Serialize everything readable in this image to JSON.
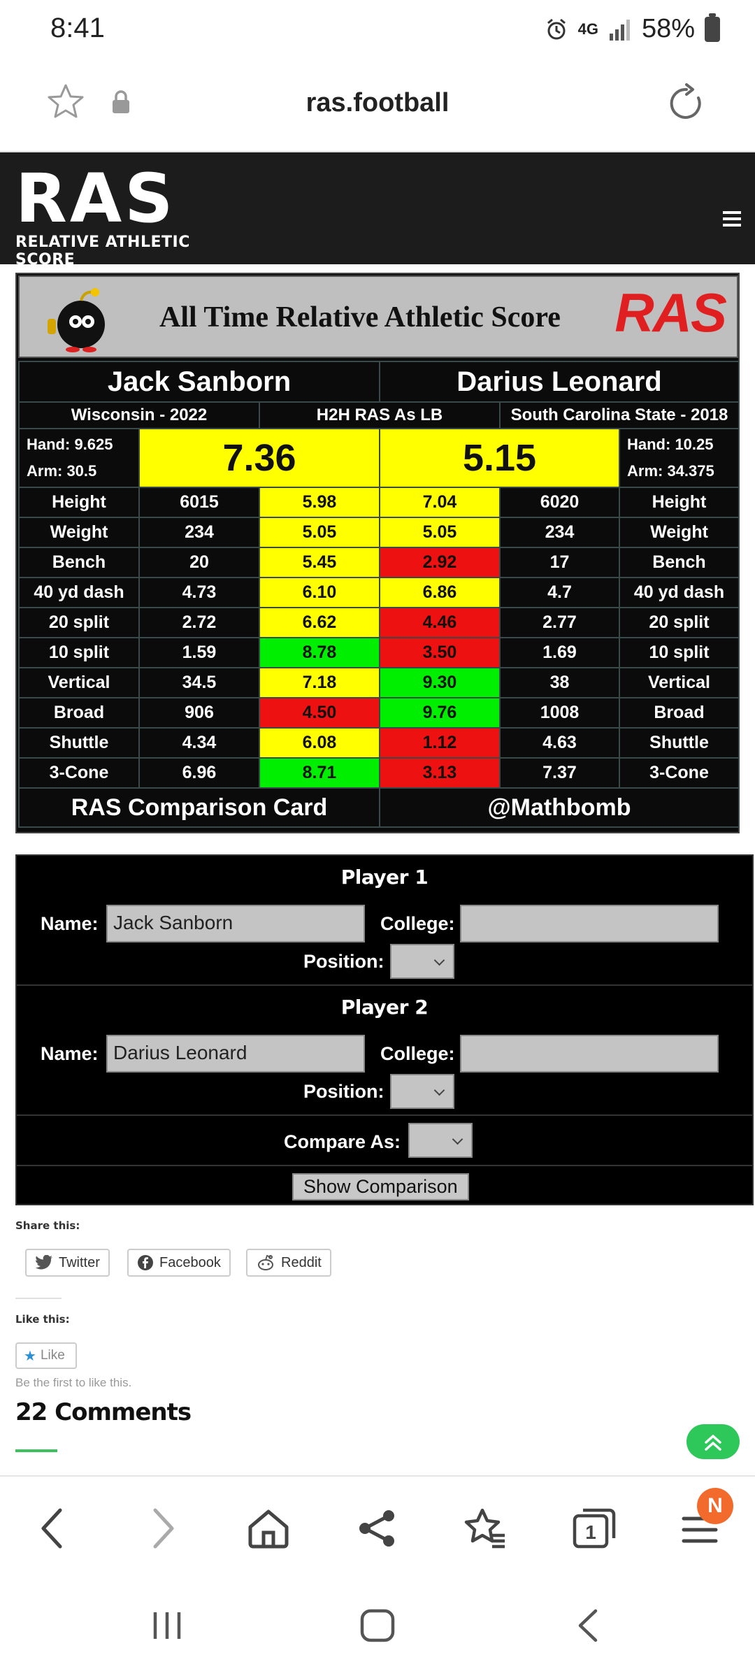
{
  "status_bar": {
    "time": "8:41",
    "network": "4G",
    "battery": "58%"
  },
  "browser": {
    "url": "ras.football"
  },
  "site": {
    "logo_main": "RAS",
    "logo_sub": "RELATIVE ATHLETIC SCORE"
  },
  "card": {
    "banner_title": "All Time Relative Athletic Score",
    "banner_logo": "RAS",
    "player1": {
      "name": "Jack Sanborn",
      "school": "Wisconsin - 2022",
      "hand": "Hand: 9.625",
      "arm": "Arm: 30.5",
      "score": "7.36"
    },
    "player2": {
      "name": "Darius Leonard",
      "school": "South Carolina State - 2018",
      "hand": "Hand: 10.25",
      "arm": "Arm: 34.375",
      "score": "5.15"
    },
    "comparison_label": "H2H RAS As LB",
    "rows": [
      {
        "metric": "Height",
        "p1_value": "6015",
        "p1_score": "5.98",
        "p1_color": "yellow",
        "p2_score": "7.04",
        "p2_color": "yellow",
        "p2_value": "6020"
      },
      {
        "metric": "Weight",
        "p1_value": "234",
        "p1_score": "5.05",
        "p1_color": "yellow",
        "p2_score": "5.05",
        "p2_color": "yellow",
        "p2_value": "234"
      },
      {
        "metric": "Bench",
        "p1_value": "20",
        "p1_score": "5.45",
        "p1_color": "yellow",
        "p2_score": "2.92",
        "p2_color": "red",
        "p2_value": "17"
      },
      {
        "metric": "40 yd dash",
        "p1_value": "4.73",
        "p1_score": "6.10",
        "p1_color": "yellow",
        "p2_score": "6.86",
        "p2_color": "yellow",
        "p2_value": "4.7"
      },
      {
        "metric": "20 split",
        "p1_value": "2.72",
        "p1_score": "6.62",
        "p1_color": "yellow",
        "p2_score": "4.46",
        "p2_color": "red",
        "p2_value": "2.77"
      },
      {
        "metric": "10 split",
        "p1_value": "1.59",
        "p1_score": "8.78",
        "p1_color": "green",
        "p2_score": "3.50",
        "p2_color": "red",
        "p2_value": "1.69"
      },
      {
        "metric": "Vertical",
        "p1_value": "34.5",
        "p1_score": "7.18",
        "p1_color": "yellow",
        "p2_score": "9.30",
        "p2_color": "green",
        "p2_value": "38"
      },
      {
        "metric": "Broad",
        "p1_value": "906",
        "p1_score": "4.50",
        "p1_color": "red",
        "p2_score": "9.76",
        "p2_color": "green",
        "p2_value": "1008"
      },
      {
        "metric": "Shuttle",
        "p1_value": "4.34",
        "p1_score": "6.08",
        "p1_color": "yellow",
        "p2_score": "1.12",
        "p2_color": "red",
        "p2_value": "4.63"
      },
      {
        "metric": "3-Cone",
        "p1_value": "6.96",
        "p1_score": "8.71",
        "p1_color": "green",
        "p2_score": "3.13",
        "p2_color": "red",
        "p2_value": "7.37"
      }
    ],
    "footer_left": "RAS Comparison Card",
    "footer_right": "@Mathbomb"
  },
  "form": {
    "player1_heading": "Player 1",
    "player2_heading": "Player 2",
    "name_label": "Name:",
    "college_label": "College:",
    "position_label": "Position:",
    "player1_name": "Jack Sanborn",
    "player2_name": "Darius Leonard",
    "player1_college": "",
    "player2_college": "",
    "compare_label": "Compare As:",
    "submit": "Show Comparison"
  },
  "share": {
    "heading": "Share this:",
    "twitter": "Twitter",
    "facebook": "Facebook",
    "reddit": "Reddit"
  },
  "like": {
    "heading": "Like this:",
    "button": "Like",
    "note": "Be the first to like this."
  },
  "comments": {
    "title": "22 Comments"
  },
  "bottom_nav": {
    "tabs_count": "1",
    "profile_badge": "N"
  },
  "colors": {
    "yellow": "#ffff00",
    "green": "#00ee00",
    "red": "#ee1111",
    "accent_green": "#2ec85a"
  }
}
